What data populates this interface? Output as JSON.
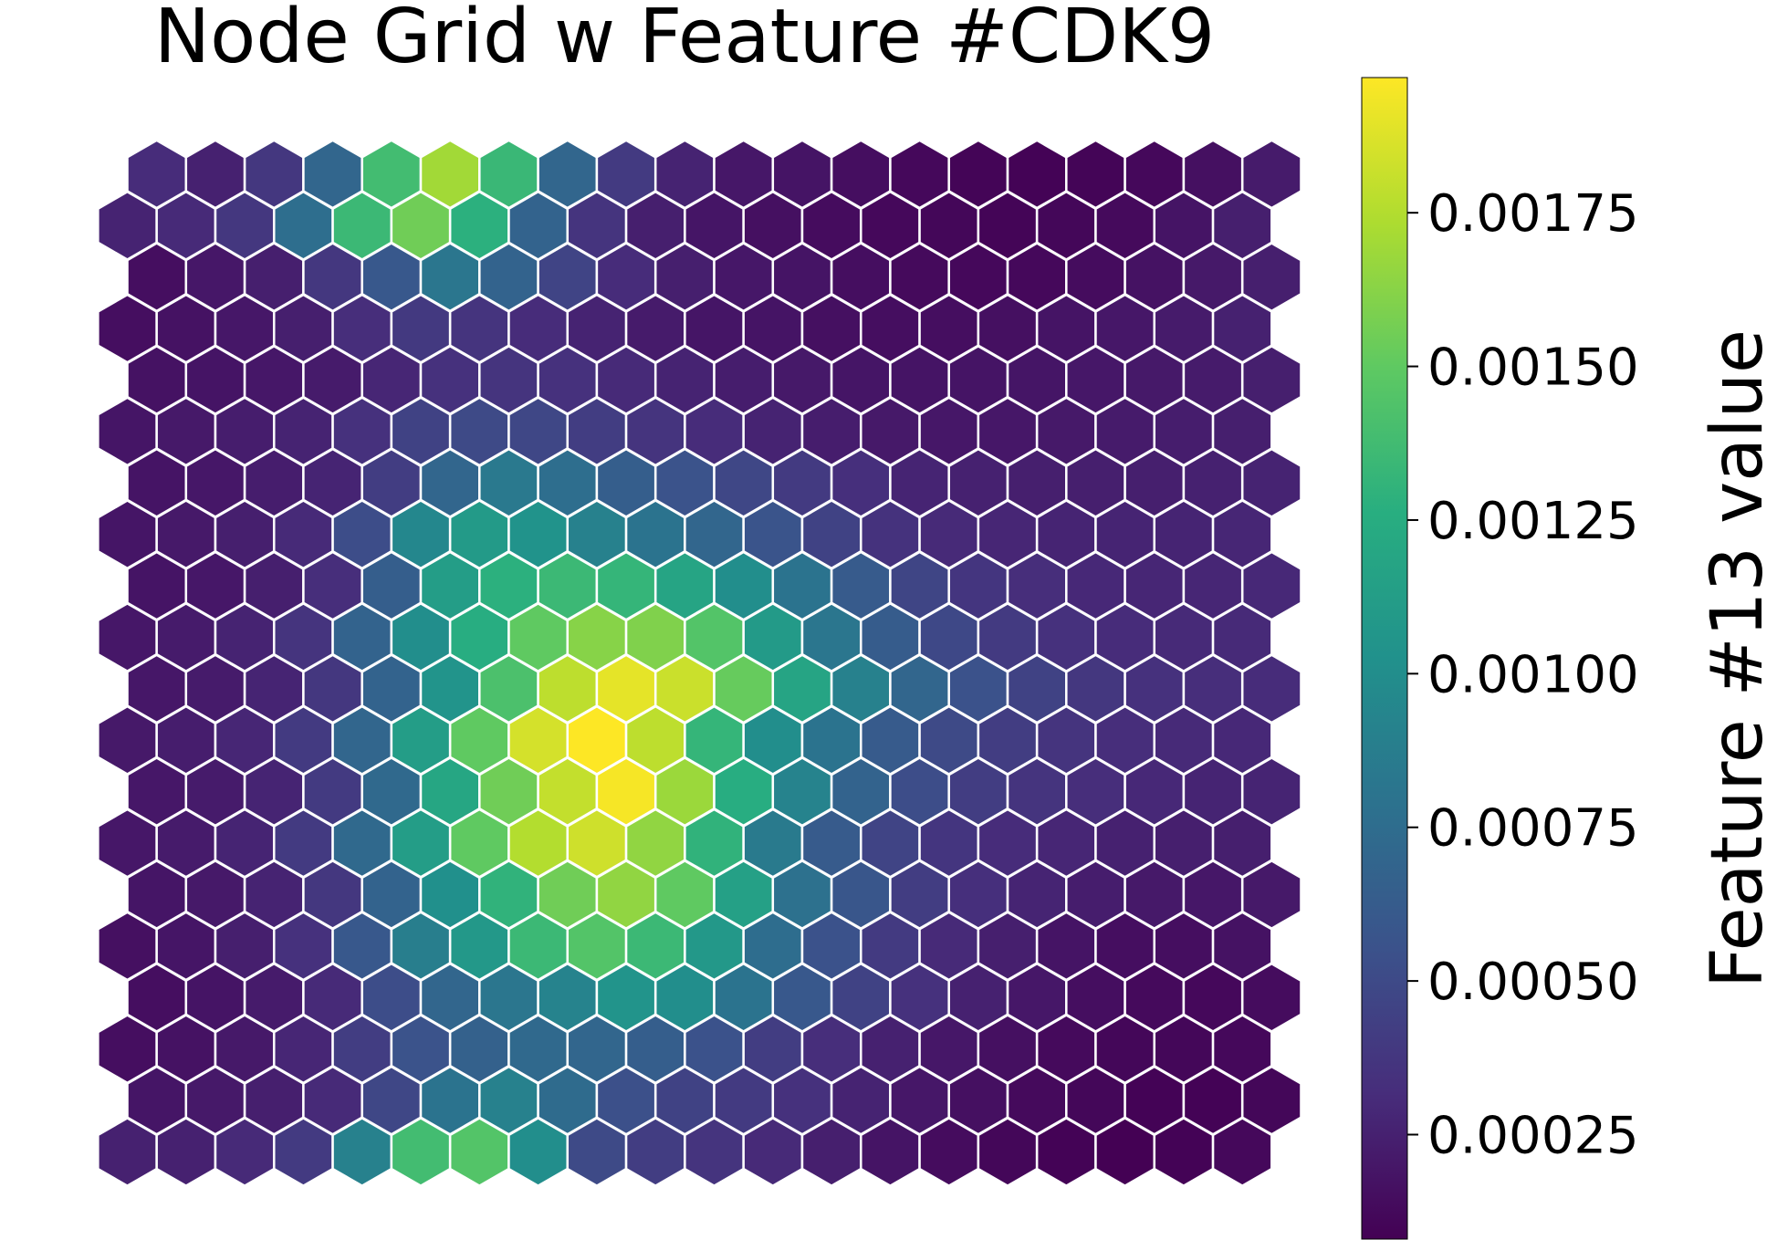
{
  "chart_data": {
    "type": "heatmap",
    "layout": "hexagonal-grid",
    "title": "Node Grid w Feature #CDK9",
    "colorbar": {
      "label": "Feature #13 value",
      "colormap": "viridis",
      "range": [
        8e-05,
        0.00197
      ],
      "ticks": [
        0.00025,
        0.0005,
        0.00075,
        0.001,
        0.00125,
        0.0015,
        0.00175
      ],
      "tick_labels": [
        "0.00025",
        "0.00050",
        "0.00075",
        "0.00100",
        "0.00125",
        "0.00150",
        "0.00175"
      ]
    },
    "grid": {
      "rows": 20,
      "cols": 20,
      "odd_rows_shifted": "right"
    },
    "hex_edge_color": "#ffffff",
    "values": [
      [
        0.00031,
        0.00025,
        0.00038,
        0.0007,
        0.00138,
        0.0017,
        0.00134,
        0.0007,
        0.0004,
        0.00026,
        0.0002,
        0.00018,
        0.00015,
        0.00012,
        0.0001,
        9e-05,
        0.0001,
        0.00012,
        0.00016,
        0.00022
      ],
      [
        0.00026,
        0.0003,
        0.00038,
        0.00076,
        0.00135,
        0.00155,
        0.00128,
        0.00068,
        0.00036,
        0.00024,
        0.00019,
        0.00016,
        0.00014,
        0.00012,
        0.00011,
        0.0001,
        0.00011,
        0.00013,
        0.00018,
        0.00024
      ],
      [
        0.00015,
        0.0002,
        0.00024,
        0.00038,
        0.0006,
        0.00082,
        0.00068,
        0.00046,
        0.00031,
        0.00024,
        0.0002,
        0.00018,
        0.00015,
        0.00013,
        0.00012,
        0.00012,
        0.00014,
        0.00017,
        0.00021,
        0.00024
      ],
      [
        0.00015,
        0.00017,
        0.0002,
        0.00024,
        0.00032,
        0.00039,
        0.00036,
        0.00031,
        0.00026,
        0.00022,
        0.00019,
        0.00018,
        0.00016,
        0.00015,
        0.00015,
        0.00016,
        0.00018,
        0.0002,
        0.00022,
        0.00025
      ],
      [
        0.00017,
        0.00018,
        0.0002,
        0.00022,
        0.00028,
        0.00034,
        0.00036,
        0.00034,
        0.0003,
        0.00026,
        0.00023,
        0.00021,
        0.00019,
        0.00018,
        0.00018,
        0.00019,
        0.0002,
        0.00021,
        0.00022,
        0.00024
      ],
      [
        0.00019,
        0.00021,
        0.00023,
        0.00026,
        0.00034,
        0.00045,
        0.0005,
        0.00048,
        0.00042,
        0.00036,
        0.00031,
        0.00026,
        0.00023,
        0.00021,
        0.0002,
        0.0002,
        0.00021,
        0.00022,
        0.00023,
        0.00024
      ],
      [
        0.00018,
        0.0002,
        0.00023,
        0.00027,
        0.00042,
        0.0007,
        0.00084,
        0.00076,
        0.00064,
        0.00056,
        0.00048,
        0.0004,
        0.00033,
        0.00027,
        0.00025,
        0.00024,
        0.00024,
        0.00024,
        0.00025,
        0.00026
      ],
      [
        0.00019,
        0.00021,
        0.00024,
        0.0003,
        0.00052,
        0.00095,
        0.0011,
        0.00104,
        0.0009,
        0.0008,
        0.0007,
        0.00057,
        0.00045,
        0.00035,
        0.0003,
        0.00028,
        0.00027,
        0.00027,
        0.00027,
        0.00028
      ],
      [
        0.00018,
        0.0002,
        0.00024,
        0.00032,
        0.00064,
        0.00112,
        0.00128,
        0.00135,
        0.00132,
        0.00118,
        0.001,
        0.0008,
        0.00062,
        0.00047,
        0.00037,
        0.00032,
        0.00029,
        0.00028,
        0.00028,
        0.00029
      ],
      [
        0.0002,
        0.00022,
        0.00026,
        0.00036,
        0.00068,
        0.001,
        0.00125,
        0.0015,
        0.00162,
        0.0016,
        0.00145,
        0.0011,
        0.00082,
        0.00063,
        0.00049,
        0.0004,
        0.00034,
        0.00031,
        0.0003,
        0.0003
      ],
      [
        0.0002,
        0.00022,
        0.00027,
        0.00038,
        0.00068,
        0.00105,
        0.00142,
        0.00178,
        0.0019,
        0.00182,
        0.00152,
        0.00118,
        0.0009,
        0.0007,
        0.00055,
        0.00045,
        0.00038,
        0.00034,
        0.00032,
        0.00031
      ],
      [
        0.00021,
        0.00023,
        0.00028,
        0.0004,
        0.0007,
        0.00112,
        0.0015,
        0.00185,
        0.00197,
        0.00178,
        0.00132,
        0.001,
        0.0008,
        0.00062,
        0.0005,
        0.00042,
        0.00036,
        0.00032,
        0.0003,
        0.00029
      ],
      [
        0.0002,
        0.00022,
        0.00027,
        0.0004,
        0.00072,
        0.0012,
        0.00155,
        0.0018,
        0.00195,
        0.00168,
        0.00125,
        0.00092,
        0.00068,
        0.00052,
        0.00042,
        0.00036,
        0.00032,
        0.00029,
        0.00027,
        0.00027
      ],
      [
        0.0002,
        0.00022,
        0.00027,
        0.0004,
        0.00072,
        0.00112,
        0.0015,
        0.00175,
        0.00183,
        0.00165,
        0.0013,
        0.00085,
        0.00062,
        0.00046,
        0.00037,
        0.00031,
        0.00028,
        0.00025,
        0.00024,
        0.00024
      ],
      [
        0.00019,
        0.00021,
        0.00026,
        0.00038,
        0.00068,
        0.00102,
        0.0013,
        0.00155,
        0.00165,
        0.0015,
        0.00115,
        0.00078,
        0.00058,
        0.00042,
        0.00033,
        0.00027,
        0.00023,
        0.00021,
        0.0002,
        0.00021
      ],
      [
        0.00016,
        0.00019,
        0.00024,
        0.00034,
        0.0006,
        0.00088,
        0.00108,
        0.00135,
        0.00145,
        0.00135,
        0.00108,
        0.00075,
        0.00055,
        0.0004,
        0.0003,
        0.00024,
        0.00018,
        0.00015,
        0.00015,
        0.00017
      ],
      [
        0.00015,
        0.00018,
        0.00022,
        0.0003,
        0.00052,
        0.0007,
        0.00082,
        0.00092,
        0.00105,
        0.001,
        0.0008,
        0.0006,
        0.00045,
        0.00034,
        0.00025,
        0.0002,
        0.00015,
        0.00013,
        0.00012,
        0.00014
      ],
      [
        0.00015,
        0.00017,
        0.00021,
        0.00028,
        0.00042,
        0.00056,
        0.00066,
        0.00072,
        0.0007,
        0.00064,
        0.00055,
        0.00042,
        0.00032,
        0.00025,
        0.0002,
        0.00016,
        0.00013,
        0.00011,
        0.00011,
        0.00012
      ],
      [
        0.00019,
        0.00021,
        0.00024,
        0.0003,
        0.00048,
        0.0008,
        0.0009,
        0.00074,
        0.00054,
        0.00045,
        0.0004,
        0.00034,
        0.00026,
        0.0002,
        0.00016,
        0.00013,
        0.00011,
        9e-05,
        9e-05,
        0.00011
      ],
      [
        0.00025,
        0.00025,
        0.0003,
        0.0004,
        0.0009,
        0.00138,
        0.00145,
        0.001,
        0.0005,
        0.00042,
        0.00036,
        0.0003,
        0.00024,
        0.00018,
        0.00014,
        0.00011,
        9e-05,
        8e-05,
        9e-05,
        0.00012
      ]
    ]
  }
}
